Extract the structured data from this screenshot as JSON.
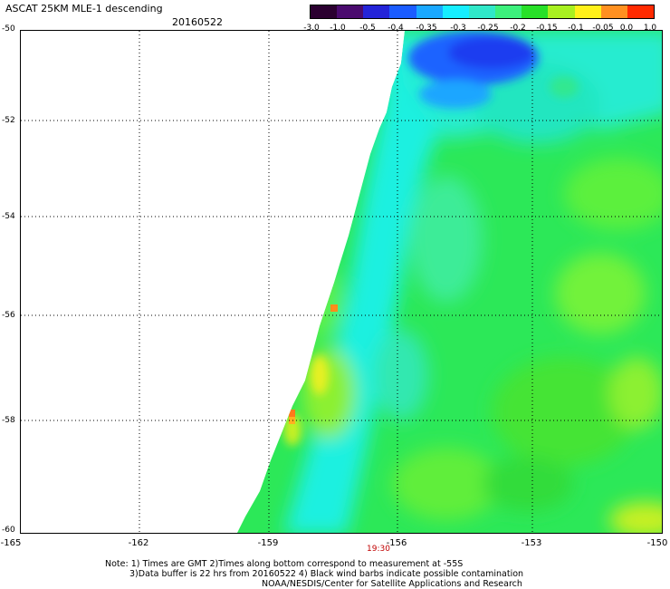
{
  "header": {
    "title": "ASCAT 25KM MLE-1 descending",
    "date": "20160522"
  },
  "colorbar": {
    "colors": [
      "#2b0030",
      "#4a0a6e",
      "#2424d8",
      "#1b5cff",
      "#1aa8ff",
      "#16eeff",
      "#30e8c8",
      "#3cf07c",
      "#28e028",
      "#a8f020",
      "#fff01a",
      "#ff9020",
      "#ff2a00"
    ],
    "tick_labels": [
      "-3.0",
      "-1.0",
      "-0.5",
      "-0.4",
      "-0.35",
      "-0.3",
      "-0.25",
      "-0.2",
      "-0.15",
      "-0.1",
      "-0.05",
      "0.0",
      "1.0"
    ]
  },
  "map": {
    "lat_labels": [
      "-50",
      "-52",
      "-54",
      "-56",
      "-58",
      "-60"
    ],
    "lon_labels": [
      "-165",
      "-162",
      "-159",
      "-156",
      "-153",
      "-150"
    ],
    "time_label": "19:30"
  },
  "notes": [
    "Note: 1) Times are GMT 2)Times along bottom correspond to measurement at -55S",
    "3)Data buffer is 22 hrs from 20160522 4) Black wind barbs indicate possible contamination",
    "NOAA/NESDIS/Center for Satellite Applications and Research"
  ]
}
